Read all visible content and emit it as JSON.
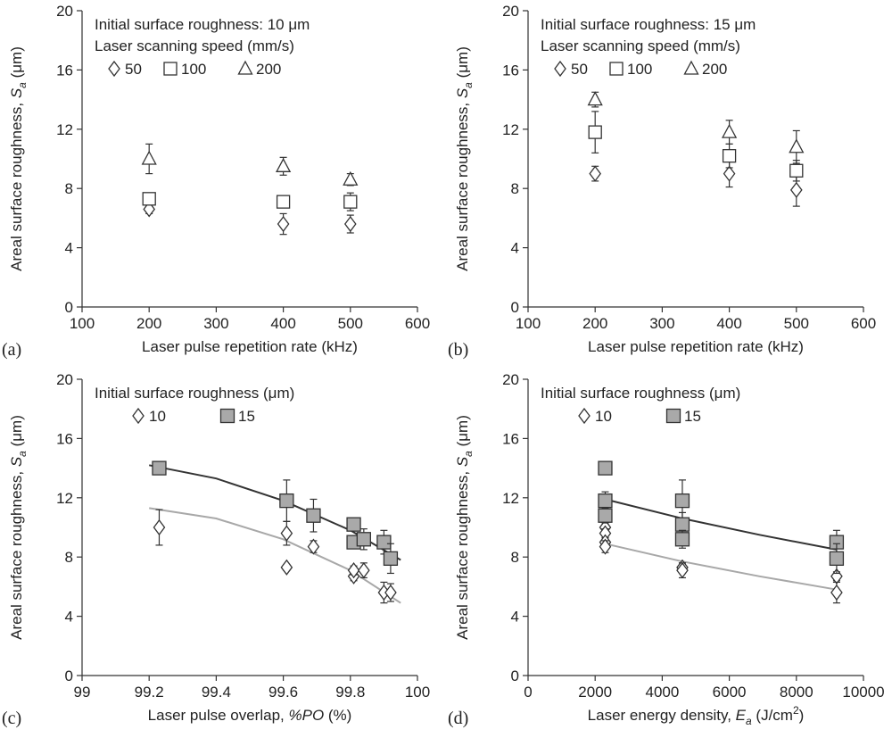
{
  "chart_data": [
    {
      "type": "scatter",
      "panel_label": "(a)",
      "xlabel": "Laser pulse repetition rate (kHz)",
      "ylabel_main": "Areal surface roughness, ",
      "ylabel_var": "S",
      "ylabel_sub": "a",
      "ylabel_unit": " (μm)",
      "xlim": [
        100,
        600
      ],
      "ylim": [
        0,
        20
      ],
      "xticks": [
        100,
        200,
        300,
        400,
        500,
        600
      ],
      "yticks": [
        0,
        4,
        8,
        12,
        16,
        20
      ],
      "annotations": [
        "Initial surface roughness: 10 μm",
        "Laser scanning speed (mm/s)"
      ],
      "legend": [
        "50",
        "100",
        "200"
      ],
      "series": [
        {
          "name": "50",
          "marker": "diamond",
          "points": [
            {
              "x": 200,
              "y": 6.6,
              "err": 0.3
            },
            {
              "x": 400,
              "y": 5.6,
              "err": 0.7
            },
            {
              "x": 500,
              "y": 5.6,
              "err": 0.6
            }
          ]
        },
        {
          "name": "100",
          "marker": "square",
          "points": [
            {
              "x": 200,
              "y": 7.3,
              "err": 0.3
            },
            {
              "x": 400,
              "y": 7.1,
              "err": 0.3
            },
            {
              "x": 500,
              "y": 7.1,
              "err": 0.6
            }
          ]
        },
        {
          "name": "200",
          "marker": "triangle",
          "points": [
            {
              "x": 200,
              "y": 10.0,
              "err": 1.0
            },
            {
              "x": 400,
              "y": 9.5,
              "err": 0.6
            },
            {
              "x": 500,
              "y": 8.6,
              "err": 0.4
            }
          ]
        }
      ]
    },
    {
      "type": "scatter",
      "panel_label": "(b)",
      "xlabel": "Laser pulse repetition rate (kHz)",
      "ylabel_main": "Areal surface roughness, ",
      "ylabel_var": "S",
      "ylabel_sub": "a",
      "ylabel_unit": " (μm)",
      "xlim": [
        100,
        600
      ],
      "ylim": [
        0,
        20
      ],
      "xticks": [
        100,
        200,
        300,
        400,
        500,
        600
      ],
      "yticks": [
        0,
        4,
        8,
        12,
        16,
        20
      ],
      "annotations": [
        "Initial surface roughness: 15 μm",
        "Laser scanning speed (mm/s)"
      ],
      "legend": [
        "50",
        "100",
        "200"
      ],
      "series": [
        {
          "name": "50",
          "marker": "diamond",
          "points": [
            {
              "x": 200,
              "y": 9.0,
              "err": 0.5
            },
            {
              "x": 400,
              "y": 9.0,
              "err": 0.9
            },
            {
              "x": 500,
              "y": 7.9,
              "err": 1.1
            }
          ]
        },
        {
          "name": "100",
          "marker": "square",
          "points": [
            {
              "x": 200,
              "y": 11.8,
              "err": 1.4
            },
            {
              "x": 400,
              "y": 10.2,
              "err": 0.8
            },
            {
              "x": 500,
              "y": 9.2,
              "err": 0.7
            }
          ]
        },
        {
          "name": "200",
          "marker": "triangle",
          "points": [
            {
              "x": 200,
              "y": 14.0,
              "err": 0.5
            },
            {
              "x": 400,
              "y": 11.8,
              "err": 0.8
            },
            {
              "x": 500,
              "y": 10.8,
              "err": 1.1
            }
          ]
        }
      ]
    },
    {
      "type": "scatter",
      "panel_label": "(c)",
      "xlabel_main": "Laser pulse overlap, ",
      "xlabel_var": "%PO",
      "xlabel_unit": " (%)",
      "ylabel_main": "Areal surface roughness, ",
      "ylabel_var": "S",
      "ylabel_sub": "a",
      "ylabel_unit": " (μm)",
      "xlim": [
        99,
        100
      ],
      "ylim": [
        0,
        20
      ],
      "xticks": [
        99,
        99.2,
        99.4,
        99.6,
        99.8,
        100
      ],
      "xtick_labels": [
        "99",
        "99.2",
        "99.4",
        "99.6",
        "99.8",
        "100"
      ],
      "yticks": [
        0,
        4,
        8,
        12,
        16,
        20
      ],
      "annotations": [
        "Initial surface roughness (μm)"
      ],
      "legend": [
        "10",
        "15"
      ],
      "series": [
        {
          "name": "10",
          "marker": "diamond",
          "color": "#ffffff",
          "points": [
            {
              "x": 99.23,
              "y": 10.0,
              "err": 1.2
            },
            {
              "x": 99.61,
              "y": 9.6,
              "err": 0.8
            },
            {
              "x": 99.61,
              "y": 7.3,
              "err": 0.2
            },
            {
              "x": 99.69,
              "y": 8.7,
              "err": 0.4
            },
            {
              "x": 99.81,
              "y": 6.7,
              "err": 0.3
            },
            {
              "x": 99.81,
              "y": 7.1,
              "err": 0.3
            },
            {
              "x": 99.84,
              "y": 7.1,
              "err": 0.5
            },
            {
              "x": 99.9,
              "y": 5.6,
              "err": 0.7
            },
            {
              "x": 99.92,
              "y": 5.6,
              "err": 0.6
            }
          ],
          "fit": [
            {
              "x": 99.2,
              "y": 11.3
            },
            {
              "x": 99.4,
              "y": 10.6
            },
            {
              "x": 99.6,
              "y": 9.2
            },
            {
              "x": 99.8,
              "y": 7.1
            },
            {
              "x": 99.95,
              "y": 4.9
            }
          ]
        },
        {
          "name": "15",
          "marker": "square-filled",
          "color": "#a9a9a9",
          "points": [
            {
              "x": 99.23,
              "y": 14.0,
              "err": 0.3
            },
            {
              "x": 99.61,
              "y": 11.8,
              "err": 1.4
            },
            {
              "x": 99.69,
              "y": 10.8,
              "err": 1.1
            },
            {
              "x": 99.81,
              "y": 10.2,
              "err": 0.3
            },
            {
              "x": 99.81,
              "y": 9.0,
              "err": 0.3
            },
            {
              "x": 99.84,
              "y": 9.2,
              "err": 0.7
            },
            {
              "x": 99.9,
              "y": 9.0,
              "err": 0.8
            },
            {
              "x": 99.92,
              "y": 7.9,
              "err": 1.0
            }
          ],
          "fit": [
            {
              "x": 99.2,
              "y": 14.2
            },
            {
              "x": 99.4,
              "y": 13.3
            },
            {
              "x": 99.6,
              "y": 11.8
            },
            {
              "x": 99.8,
              "y": 9.8
            },
            {
              "x": 99.95,
              "y": 7.8
            }
          ]
        }
      ]
    },
    {
      "type": "scatter",
      "panel_label": "(d)",
      "xlabel_main": "Laser energy density, ",
      "xlabel_var": "E",
      "xlabel_sub": "a",
      "xlabel_unit": " (J/cm",
      "xlabel_sup": "2",
      "xlabel_end": ")",
      "ylabel_main": "Areal surface roughness, ",
      "ylabel_var": "S",
      "ylabel_sub": "a",
      "ylabel_unit": " (μm)",
      "xlim": [
        0,
        10000
      ],
      "ylim": [
        0,
        20
      ],
      "xticks": [
        0,
        2000,
        4000,
        6000,
        8000,
        10000
      ],
      "xtick_labels": [
        "0",
        "2000",
        "4000",
        "6000",
        "8000",
        "10000"
      ],
      "yticks": [
        0,
        4,
        8,
        12,
        16,
        20
      ],
      "annotations": [
        "Initial surface roughness (μm)"
      ],
      "legend": [
        "10",
        "15"
      ],
      "series": [
        {
          "name": "10",
          "marker": "diamond",
          "color": "#ffffff",
          "points": [
            {
              "x": 2300,
              "y": 10.0,
              "err": 0.4
            },
            {
              "x": 2300,
              "y": 9.6,
              "err": 0.3
            },
            {
              "x": 2300,
              "y": 9.0,
              "err": 0.3
            },
            {
              "x": 2300,
              "y": 8.7,
              "err": 0.4
            },
            {
              "x": 4600,
              "y": 7.3,
              "err": 0.3
            },
            {
              "x": 4600,
              "y": 7.1,
              "err": 0.5
            },
            {
              "x": 9200,
              "y": 6.7,
              "err": 0.3
            },
            {
              "x": 9200,
              "y": 5.6,
              "err": 0.7
            }
          ],
          "fit": [
            {
              "x": 2300,
              "y": 8.9
            },
            {
              "x": 4600,
              "y": 7.7
            },
            {
              "x": 6900,
              "y": 6.7
            },
            {
              "x": 9200,
              "y": 5.8
            }
          ]
        },
        {
          "name": "15",
          "marker": "square-filled",
          "color": "#a9a9a9",
          "points": [
            {
              "x": 2300,
              "y": 14.0,
              "err": 0.3
            },
            {
              "x": 2300,
              "y": 11.8,
              "err": 0.6
            },
            {
              "x": 2300,
              "y": 10.8,
              "err": 0.5
            },
            {
              "x": 4600,
              "y": 11.8,
              "err": 1.4
            },
            {
              "x": 4600,
              "y": 10.2,
              "err": 0.8
            },
            {
              "x": 4600,
              "y": 9.2,
              "err": 0.6
            },
            {
              "x": 9200,
              "y": 9.0,
              "err": 0.8
            },
            {
              "x": 9200,
              "y": 7.9,
              "err": 1.0
            }
          ],
          "fit": [
            {
              "x": 2300,
              "y": 11.9
            },
            {
              "x": 4600,
              "y": 10.6
            },
            {
              "x": 6900,
              "y": 9.5
            },
            {
              "x": 9200,
              "y": 8.5
            }
          ]
        }
      ]
    }
  ]
}
